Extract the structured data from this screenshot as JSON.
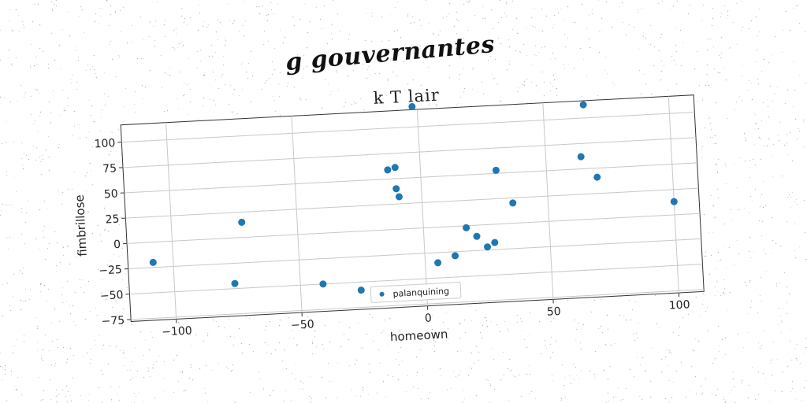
{
  "suptitle": "g gouvernantes",
  "chart_data": {
    "type": "scatter",
    "title": "k T lair",
    "xlabel": "homeown",
    "ylabel": "fimbrillose",
    "xlim": [
      -118,
      110
    ],
    "ylim": [
      -77,
      117
    ],
    "xticks": [
      -100,
      -50,
      0,
      50,
      100
    ],
    "xtick_labels": [
      "−100",
      "−50",
      "0",
      "50",
      "100"
    ],
    "yticks": [
      -75,
      -50,
      -25,
      0,
      25,
      50,
      75,
      100
    ],
    "ytick_labels": [
      "−75",
      "−50",
      "−25",
      "0",
      "25",
      "50",
      "75",
      "100"
    ],
    "grid": true,
    "legend_position": "lower-center",
    "series": [
      {
        "name": "palanquining",
        "color": "#1f77b4",
        "points": [
          {
            "x": -108,
            "y": -20
          },
          {
            "x": -76,
            "y": -45
          },
          {
            "x": -72,
            "y": 15
          },
          {
            "x": -41,
            "y": -50
          },
          {
            "x": -26,
            "y": -58
          },
          {
            "x": -13,
            "y": 59
          },
          {
            "x": -10,
            "y": 61
          },
          {
            "x": -10,
            "y": 40
          },
          {
            "x": -9,
            "y": 32
          },
          {
            "x": -2,
            "y": 120
          },
          {
            "x": 5,
            "y": -35
          },
          {
            "x": 12,
            "y": -29
          },
          {
            "x": 17,
            "y": -2
          },
          {
            "x": 21,
            "y": -11
          },
          {
            "x": 25,
            "y": -22
          },
          {
            "x": 28,
            "y": -18
          },
          {
            "x": 30,
            "y": 53
          },
          {
            "x": 36,
            "y": 20
          },
          {
            "x": 64,
            "y": 62
          },
          {
            "x": 66,
            "y": 113
          },
          {
            "x": 70,
            "y": 41
          },
          {
            "x": 100,
            "y": 13
          }
        ]
      }
    ]
  }
}
